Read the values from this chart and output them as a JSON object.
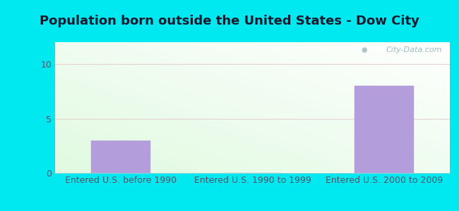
{
  "title": "Population born outside the United States - Dow City",
  "categories": [
    "Entered U.S. before 1990",
    "Entered U.S. 1990 to 1999",
    "Entered U.S. 2000 to 2009"
  ],
  "values": [
    3,
    0,
    8
  ],
  "bar_color": "#b39ddb",
  "bar_edge_color": "#b39ddb",
  "ylim": [
    0,
    12
  ],
  "yticks": [
    0,
    5,
    10
  ],
  "background_outer": "#00e8f0",
  "grid_color": "#e8d0d0",
  "title_fontsize": 13,
  "tick_fontsize": 9,
  "watermark": "City-Data.com",
  "title_color": "#1a1a2e",
  "tick_color": "#555566"
}
